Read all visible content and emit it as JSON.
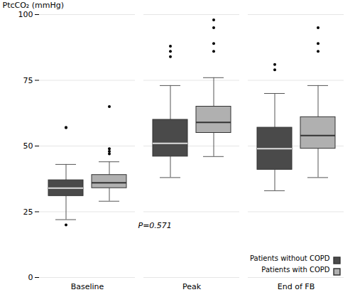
{
  "chart_data": {
    "type": "box",
    "categories": [
      "Baseline",
      "Peak",
      "End of FB"
    ],
    "ylabel": "PtcCO₂ (mmHg)",
    "ylim": [
      0,
      100
    ],
    "yticks": [
      0,
      25,
      50,
      75,
      100
    ],
    "grid": true,
    "legend": "lower right",
    "annotations": [
      "P=0.571"
    ],
    "series": [
      {
        "name": "Patients without COPD",
        "color": "#4a4a4a",
        "values": [
          {
            "median": 34,
            "q1": 31,
            "q3": 37,
            "whisker_low": 22,
            "whisker_high": 43,
            "fliers": [
              20,
              57,
              57
            ]
          },
          {
            "median": 51,
            "q1": 46,
            "q3": 60,
            "whisker_low": 38,
            "whisker_high": 73,
            "fliers": [
              84,
              86,
              88
            ]
          },
          {
            "median": 49,
            "q1": 41,
            "q3": 57,
            "whisker_low": 33,
            "whisker_high": 70,
            "fliers": [
              79,
              81
            ]
          }
        ]
      },
      {
        "name": "Patients with COPD",
        "color": "#b0b0b0",
        "values": [
          {
            "median": 36,
            "q1": 34,
            "q3": 39,
            "whisker_low": 29,
            "whisker_high": 44,
            "fliers": [
              47,
              48,
              49,
              65
            ]
          },
          {
            "median": 59,
            "q1": 55,
            "q3": 65,
            "whisker_low": 46,
            "whisker_high": 76,
            "fliers": [
              86,
              89,
              95,
              98
            ]
          },
          {
            "median": 54,
            "q1": 49,
            "q3": 61,
            "whisker_low": 38,
            "whisker_high": 73,
            "fliers": [
              86,
              89,
              95
            ]
          }
        ]
      }
    ]
  }
}
